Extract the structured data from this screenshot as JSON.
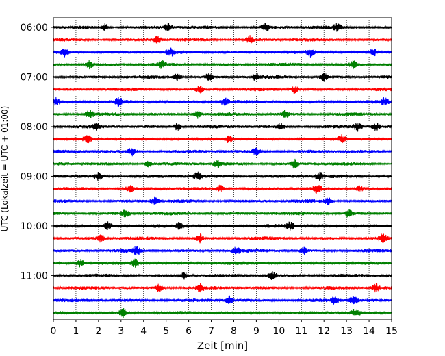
{
  "chart_data": {
    "type": "helicorder",
    "xlabel": "Zeit  [min]",
    "ylabel": "UTC (Lokalzeit = UTC + 01:00)",
    "xlim": [
      0,
      15
    ],
    "x_ticks": [
      0,
      1,
      2,
      3,
      4,
      5,
      6,
      7,
      8,
      9,
      10,
      11,
      12,
      13,
      14,
      15
    ],
    "grid": "vertical dotted at each minute",
    "trace_minutes": 15,
    "trace_colors": [
      "#000000",
      "#ff0000",
      "#0000ff",
      "#008000"
    ],
    "traces": [
      {
        "time": "06:00",
        "label": "06:00",
        "spikes": [
          2.3,
          5.1,
          9.4,
          12.6
        ]
      },
      {
        "time": "06:15",
        "label": "",
        "spikes": [
          4.6,
          8.7
        ]
      },
      {
        "time": "06:30",
        "label": "",
        "spikes": [
          0.5,
          5.2,
          11.4,
          14.2
        ]
      },
      {
        "time": "06:45",
        "label": "",
        "spikes": [
          1.6,
          4.8,
          13.3
        ]
      },
      {
        "time": "07:00",
        "label": "07:00",
        "spikes": [
          5.5,
          6.9,
          9.0,
          12.0
        ]
      },
      {
        "time": "07:15",
        "label": "",
        "spikes": [
          6.5,
          10.7
        ]
      },
      {
        "time": "07:30",
        "label": "",
        "spikes": [
          0.1,
          2.9,
          7.6,
          14.7
        ]
      },
      {
        "time": "07:45",
        "label": "",
        "spikes": [
          1.6,
          6.4,
          10.3
        ]
      },
      {
        "time": "08:00",
        "label": "08:00",
        "spikes": [
          1.9,
          5.5,
          10.1,
          13.5,
          14.3
        ]
      },
      {
        "time": "08:15",
        "label": "",
        "spikes": [
          1.5,
          7.8,
          12.8
        ]
      },
      {
        "time": "08:30",
        "label": "",
        "spikes": [
          3.5,
          9.0
        ]
      },
      {
        "time": "08:45",
        "label": "",
        "spikes": [
          4.2,
          7.3,
          10.7
        ]
      },
      {
        "time": "09:00",
        "label": "09:00",
        "spikes": [
          2.0,
          6.4,
          11.8
        ]
      },
      {
        "time": "09:15",
        "label": "",
        "spikes": [
          3.4,
          7.4,
          11.7,
          13.6
        ]
      },
      {
        "time": "09:30",
        "label": "",
        "spikes": [
          4.5,
          12.2
        ]
      },
      {
        "time": "09:45",
        "label": "",
        "spikes": [
          3.2,
          13.1
        ]
      },
      {
        "time": "10:00",
        "label": "10:00",
        "spikes": [
          2.4,
          5.6,
          10.5
        ]
      },
      {
        "time": "10:15",
        "label": "",
        "spikes": [
          2.1,
          6.5,
          14.6
        ]
      },
      {
        "time": "10:30",
        "label": "",
        "spikes": [
          3.7,
          8.1,
          11.1
        ]
      },
      {
        "time": "10:45",
        "label": "",
        "spikes": [
          1.2,
          3.6
        ]
      },
      {
        "time": "11:00",
        "label": "11:00",
        "spikes": [
          5.8,
          9.7
        ]
      },
      {
        "time": "11:15",
        "label": "",
        "spikes": [
          4.7,
          6.5,
          14.3
        ]
      },
      {
        "time": "11:30",
        "label": "",
        "spikes": [
          7.8,
          12.5,
          13.3
        ]
      },
      {
        "time": "11:45",
        "label": "",
        "spikes": [
          3.1,
          13.4
        ]
      }
    ]
  }
}
